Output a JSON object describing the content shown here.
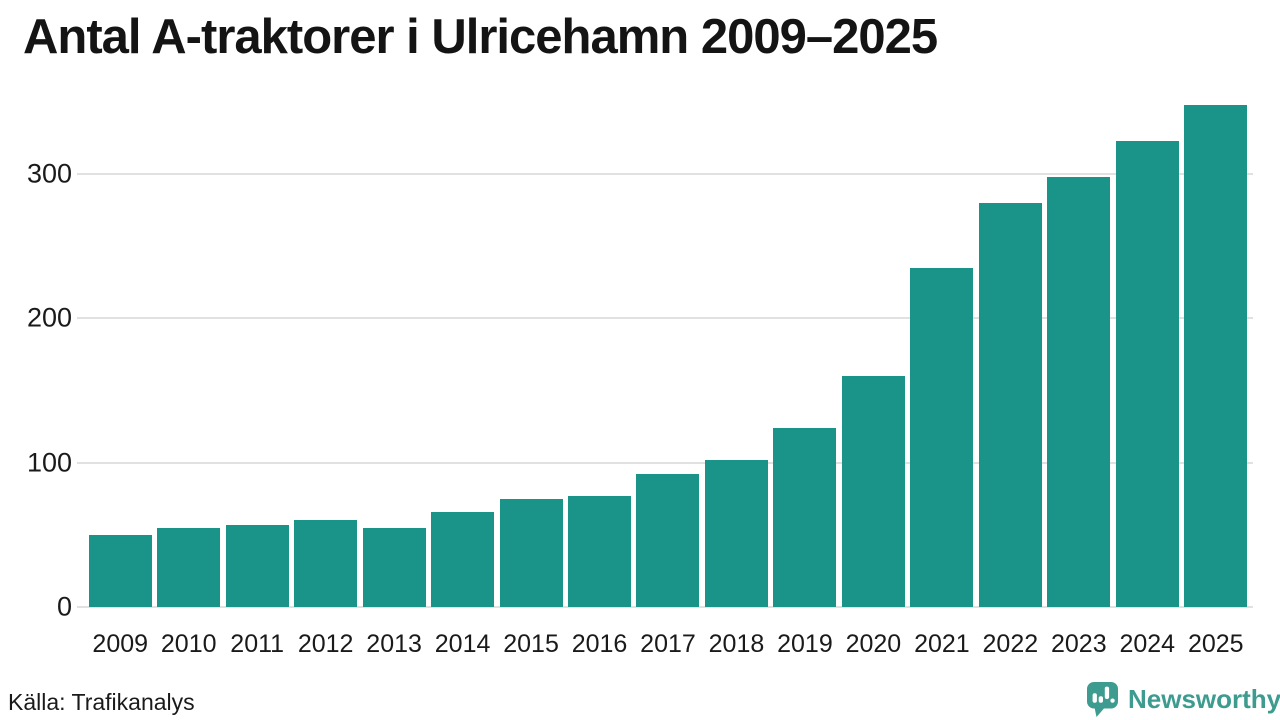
{
  "title": "Antal A-traktorer i Ulricehamn 2009–2025",
  "source": "Källa: Trafikanalys",
  "branding": {
    "name": "Newsworthy",
    "color": "#3d9c8f"
  },
  "colors": {
    "bar": "#1a9489",
    "gridline": "#e1e1e1",
    "title_text": "#141414",
    "axis_text": "#1a1a1a",
    "background": "#ffffff"
  },
  "chart_data": {
    "type": "bar",
    "title": "Antal A-traktorer i Ulricehamn 2009–2025",
    "categories": [
      "2009",
      "2010",
      "2011",
      "2012",
      "2013",
      "2014",
      "2015",
      "2016",
      "2017",
      "2018",
      "2019",
      "2020",
      "2021",
      "2022",
      "2023",
      "2024",
      "2025"
    ],
    "values": [
      50,
      55,
      57,
      60,
      55,
      66,
      75,
      77,
      92,
      102,
      124,
      160,
      235,
      280,
      298,
      323,
      348
    ],
    "xlabel": "",
    "ylabel": "",
    "ylim": [
      0,
      350
    ],
    "yticks": [
      0,
      100,
      200,
      300
    ],
    "grid": true,
    "legend": false,
    "source": "Källa: Trafikanalys"
  }
}
